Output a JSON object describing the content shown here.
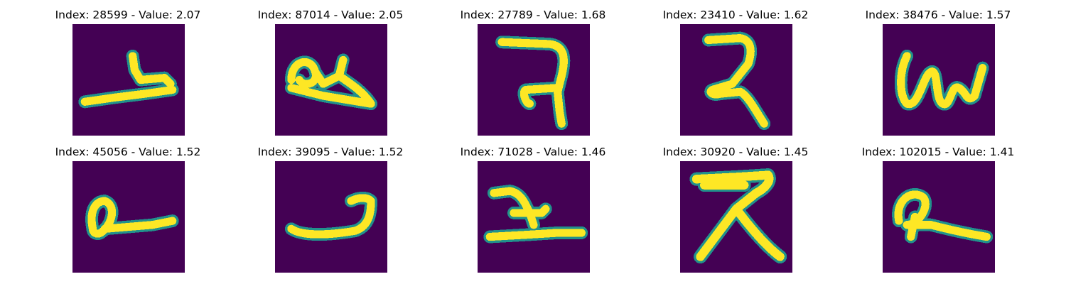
{
  "figure": {
    "background": "#ffffff",
    "colormap": "viridis",
    "colors": {
      "low": "#440154",
      "mid": "#21918c",
      "high": "#fde725"
    },
    "panels": [
      {
        "title": "Index: 28599 - Value: 2.07"
      },
      {
        "title": "Index: 87014 - Value: 2.05"
      },
      {
        "title": "Index: 27789 - Value: 1.68"
      },
      {
        "title": "Index: 23410 - Value: 1.62"
      },
      {
        "title": "Index: 38476 - Value: 1.57"
      },
      {
        "title": "Index: 45056 - Value: 1.52"
      },
      {
        "title": "Index: 39095 - Value: 1.52"
      },
      {
        "title": "Index: 71028 - Value: 1.46"
      },
      {
        "title": "Index: 30920 - Value: 1.45"
      },
      {
        "title": "Index: 102015 - Value: 1.41"
      }
    ]
  }
}
